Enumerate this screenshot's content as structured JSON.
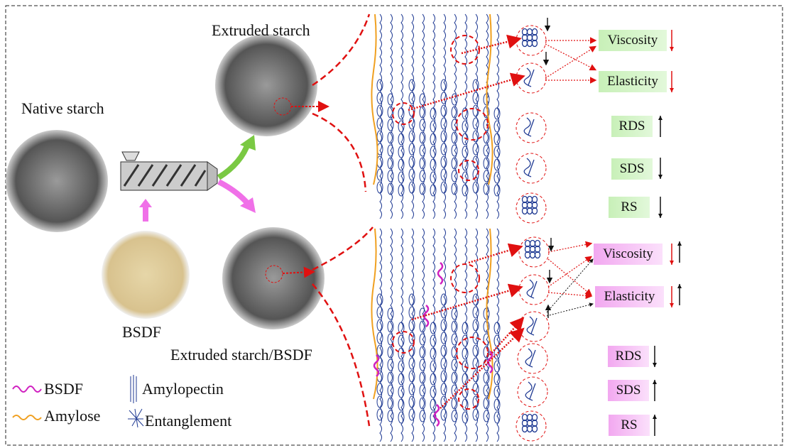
{
  "labels": {
    "native": "Native starch",
    "extruded": "Extruded starch",
    "bsdf": "BSDF",
    "extruded_bsdf": "Extruded starch/BSDF"
  },
  "legend": {
    "bsdf": "BSDF",
    "amylose": "Amylose",
    "amylopectin": "Amylopectin",
    "entanglement": "Entanglement"
  },
  "top_properties": [
    {
      "label": "Viscosity",
      "trend": "down"
    },
    {
      "label": "Elasticity",
      "trend": "down"
    },
    {
      "label": "RDS",
      "trend": "up"
    },
    {
      "label": "SDS",
      "trend": "down"
    },
    {
      "label": "RS",
      "trend": "down"
    }
  ],
  "bottom_properties": [
    {
      "label": "Viscosity",
      "trend": "down-up"
    },
    {
      "label": "Elasticity",
      "trend": "down-up"
    },
    {
      "label": "RDS",
      "trend": "down"
    },
    {
      "label": "SDS",
      "trend": "up"
    },
    {
      "label": "RS",
      "trend": "up"
    }
  ],
  "colors": {
    "top_box": "#c8f0b8",
    "bottom_box": "#f2a8f0",
    "amylopectin": "#1f3a93",
    "amylose": "#f0a020",
    "bsdf": "#d020c0",
    "arrow_red": "#e01010",
    "green_arrow": "#7ac943",
    "pink_arrow": "#f070e8"
  }
}
